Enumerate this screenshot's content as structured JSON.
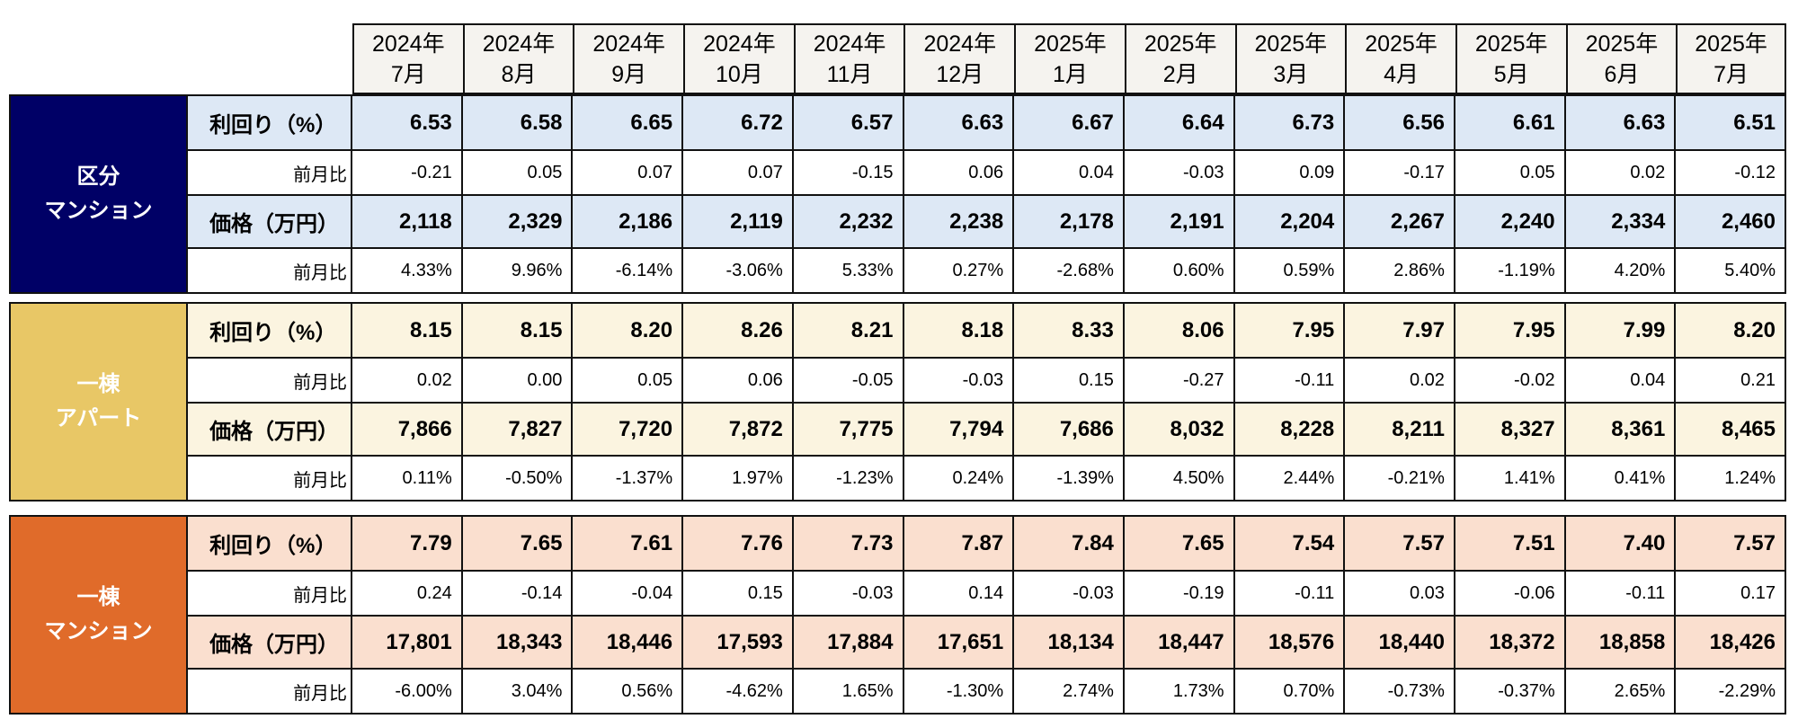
{
  "months": [
    {
      "year": "2024年",
      "month": "7月"
    },
    {
      "year": "2024年",
      "month": "8月"
    },
    {
      "year": "2024年",
      "month": "9月"
    },
    {
      "year": "2024年",
      "month": "10月"
    },
    {
      "year": "2024年",
      "month": "11月"
    },
    {
      "year": "2024年",
      "month": "12月"
    },
    {
      "year": "2025年",
      "month": "1月"
    },
    {
      "year": "2025年",
      "month": "2月"
    },
    {
      "year": "2025年",
      "month": "3月"
    },
    {
      "year": "2025年",
      "month": "4月"
    },
    {
      "year": "2025年",
      "month": "5月"
    },
    {
      "year": "2025年",
      "month": "6月"
    },
    {
      "year": "2025年",
      "month": "7月"
    }
  ],
  "sections": [
    {
      "category": [
        "区分",
        "マンション"
      ],
      "color": "#000066",
      "light": "#DDE8F5",
      "rows": [
        {
          "label": "利回り（%）",
          "type": "main",
          "values": [
            "6.53",
            "6.58",
            "6.65",
            "6.72",
            "6.57",
            "6.63",
            "6.67",
            "6.64",
            "6.73",
            "6.56",
            "6.61",
            "6.63",
            "6.51"
          ]
        },
        {
          "label": "前月比",
          "type": "chg",
          "values": [
            "-0.21",
            "0.05",
            "0.07",
            "0.07",
            "-0.15",
            "0.06",
            "0.04",
            "-0.03",
            "0.09",
            "-0.17",
            "0.05",
            "0.02",
            "-0.12"
          ]
        },
        {
          "label": "価格（万円）",
          "type": "main",
          "values": [
            "2,118",
            "2,329",
            "2,186",
            "2,119",
            "2,232",
            "2,238",
            "2,178",
            "2,191",
            "2,204",
            "2,267",
            "2,240",
            "2,334",
            "2,460"
          ]
        },
        {
          "label": "前月比",
          "type": "chg",
          "values": [
            "4.33%",
            "9.96%",
            "-6.14%",
            "-3.06%",
            "5.33%",
            "0.27%",
            "-2.68%",
            "0.60%",
            "0.59%",
            "2.86%",
            "-1.19%",
            "4.20%",
            "5.40%"
          ]
        }
      ]
    },
    {
      "category": [
        "一棟",
        "アパート"
      ],
      "color": "#E8C766",
      "light": "#FBF4E0",
      "rows": [
        {
          "label": "利回り（%）",
          "type": "main",
          "values": [
            "8.15",
            "8.15",
            "8.20",
            "8.26",
            "8.21",
            "8.18",
            "8.33",
            "8.06",
            "7.95",
            "7.97",
            "7.95",
            "7.99",
            "8.20"
          ]
        },
        {
          "label": "前月比",
          "type": "chg",
          "values": [
            "0.02",
            "0.00",
            "0.05",
            "0.06",
            "-0.05",
            "-0.03",
            "0.15",
            "-0.27",
            "-0.11",
            "0.02",
            "-0.02",
            "0.04",
            "0.21"
          ]
        },
        {
          "label": "価格（万円）",
          "type": "main",
          "values": [
            "7,866",
            "7,827",
            "7,720",
            "7,872",
            "7,775",
            "7,794",
            "7,686",
            "8,032",
            "8,228",
            "8,211",
            "8,327",
            "8,361",
            "8,465"
          ]
        },
        {
          "label": "前月比",
          "type": "chg",
          "values": [
            "0.11%",
            "-0.50%",
            "-1.37%",
            "1.97%",
            "-1.23%",
            "0.24%",
            "-1.39%",
            "4.50%",
            "2.44%",
            "-0.21%",
            "1.41%",
            "0.41%",
            "1.24%"
          ]
        }
      ]
    },
    {
      "category": [
        "一棟",
        "マンション"
      ],
      "color": "#E06B2A",
      "light": "#FADFCF",
      "rows": [
        {
          "label": "利回り（%）",
          "type": "main",
          "values": [
            "7.79",
            "7.65",
            "7.61",
            "7.76",
            "7.73",
            "7.87",
            "7.84",
            "7.65",
            "7.54",
            "7.57",
            "7.51",
            "7.40",
            "7.57"
          ]
        },
        {
          "label": "前月比",
          "type": "chg",
          "values": [
            "0.24",
            "-0.14",
            "-0.04",
            "0.15",
            "-0.03",
            "0.14",
            "-0.03",
            "-0.19",
            "-0.11",
            "0.03",
            "-0.06",
            "-0.11",
            "0.17"
          ]
        },
        {
          "label": "価格（万円）",
          "type": "main",
          "values": [
            "17,801",
            "18,343",
            "18,446",
            "17,593",
            "17,884",
            "17,651",
            "18,134",
            "18,447",
            "18,576",
            "18,440",
            "18,372",
            "18,858",
            "18,426"
          ]
        },
        {
          "label": "前月比",
          "type": "chg",
          "values": [
            "-6.00%",
            "3.04%",
            "0.56%",
            "-4.62%",
            "1.65%",
            "-1.30%",
            "2.74%",
            "1.73%",
            "0.70%",
            "-0.73%",
            "-0.37%",
            "2.65%",
            "-2.29%"
          ]
        }
      ]
    }
  ]
}
